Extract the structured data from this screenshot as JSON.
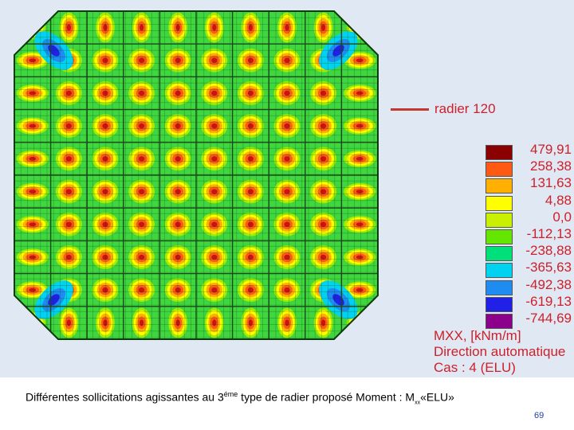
{
  "legend": {
    "entries": [
      {
        "value": "479,91",
        "color": "#8b0000"
      },
      {
        "value": "258,38",
        "color": "#ff5a14"
      },
      {
        "value": "131,63",
        "color": "#ffb000"
      },
      {
        "value": "4,88",
        "color": "#ffff00"
      },
      {
        "value": "0,0",
        "color": "#c8f000"
      },
      {
        "value": "-112,13",
        "color": "#64e600"
      },
      {
        "value": "-238,88",
        "color": "#00e07a"
      },
      {
        "value": "-365,63",
        "color": "#00d2f0"
      },
      {
        "value": "-492,38",
        "color": "#1e8cf0"
      },
      {
        "value": "-619,13",
        "color": "#2020e6"
      },
      {
        "value": "-744,69",
        "color": "#8c008c"
      }
    ],
    "quantity": "MXX, [kNm/m]",
    "direction": "Direction automatique",
    "case": "Cas : 4 (ELU)"
  },
  "model_label": "radier 120",
  "leader_color": "#c0392b",
  "caption": {
    "text_before": "Différentes sollicitations agissantes au 3",
    "superscript": "éme",
    "text_after": " type de radier proposé Moment : M",
    "subscript": "xx",
    "text_end": "«ELU»"
  },
  "page_number": "69"
}
